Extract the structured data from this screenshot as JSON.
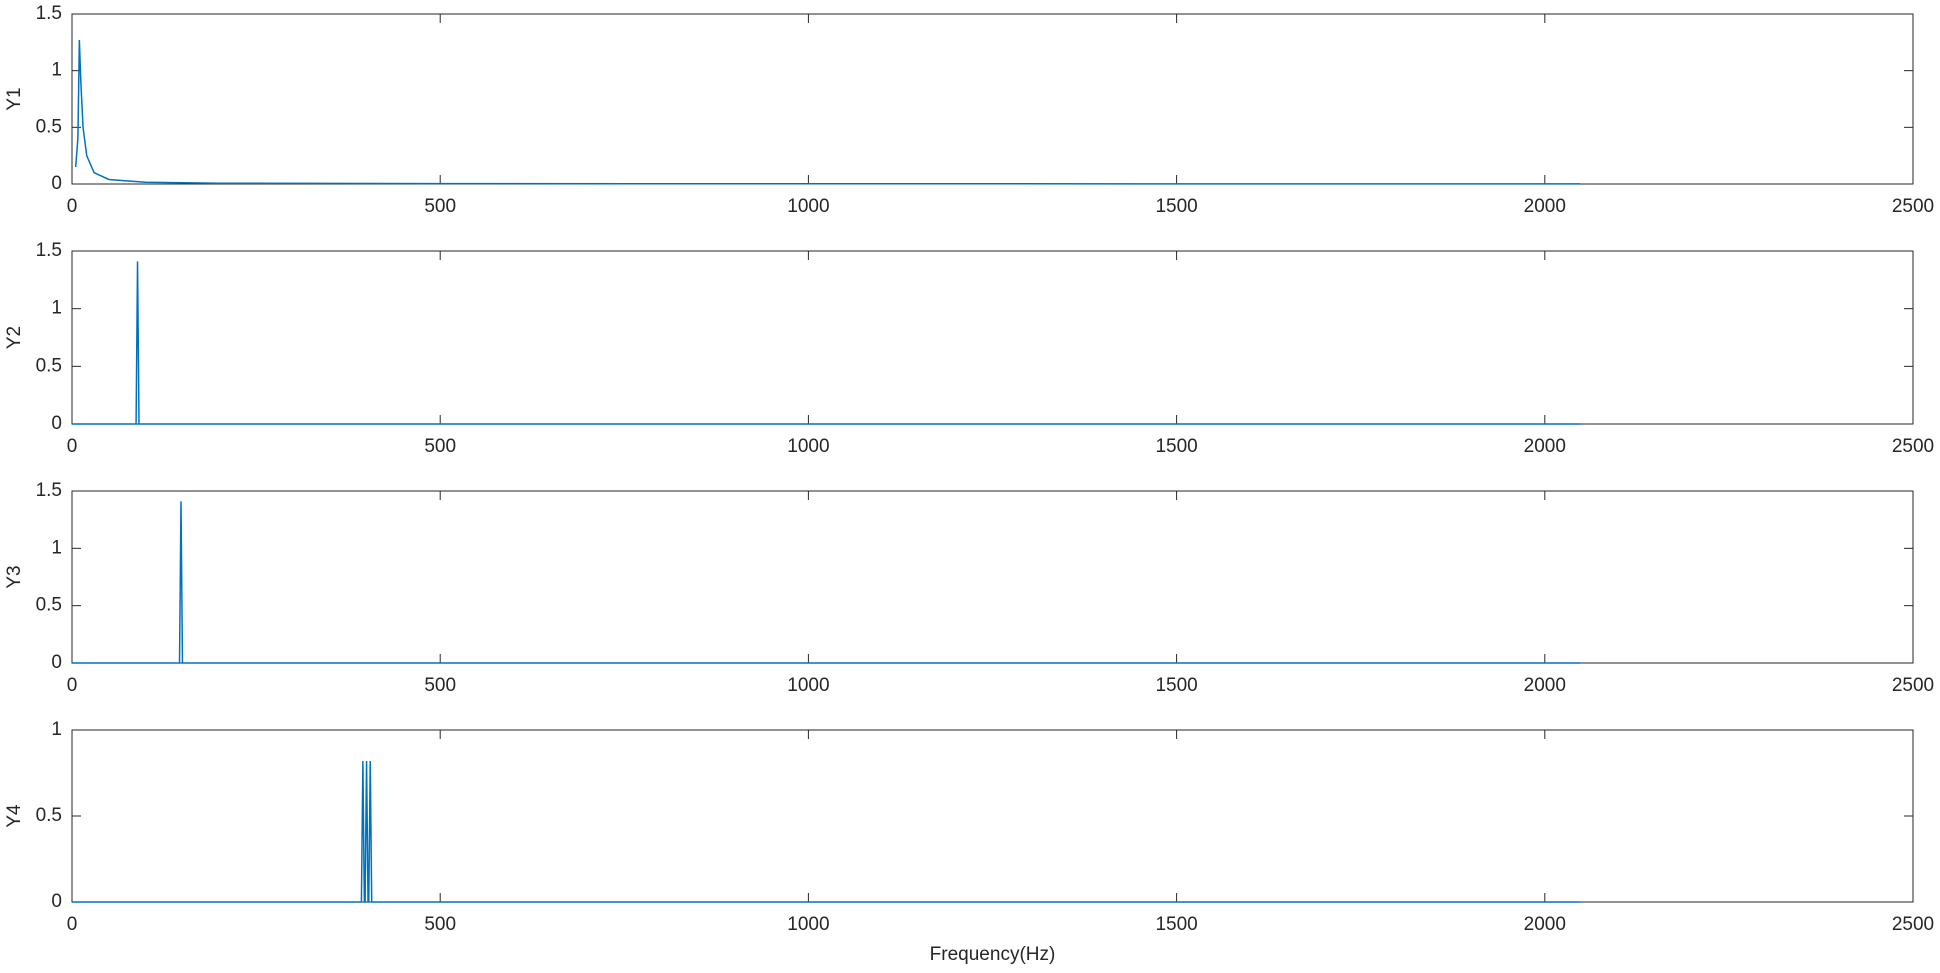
{
  "chart_data": [
    {
      "type": "line",
      "ylabel": "Y1",
      "color": "#0072bd",
      "x": [
        5,
        8,
        10,
        12,
        15,
        20,
        30,
        50,
        100,
        200,
        500,
        1000,
        2048
      ],
      "values": [
        0.15,
        0.4,
        1.27,
        0.9,
        0.5,
        0.25,
        0.1,
        0.04,
        0.015,
        0.007,
        0.003,
        0.002,
        0.001
      ],
      "xlim": [
        0,
        2500
      ],
      "xticks": [
        0,
        500,
        1000,
        1500,
        2000,
        2500
      ],
      "ylim": [
        0,
        1.5
      ],
      "yticks": [
        0,
        0.5,
        1,
        1.5
      ]
    },
    {
      "type": "line",
      "ylabel": "Y2",
      "color": "#0072bd",
      "x": [
        0,
        87,
        89,
        91,
        2048
      ],
      "values": [
        0,
        0,
        1.41,
        0,
        0
      ],
      "xlim": [
        0,
        2500
      ],
      "xticks": [
        0,
        500,
        1000,
        1500,
        2000,
        2500
      ],
      "ylim": [
        0,
        1.5
      ],
      "yticks": [
        0,
        0.5,
        1,
        1.5
      ]
    },
    {
      "type": "line",
      "ylabel": "Y3",
      "color": "#0072bd",
      "x": [
        0,
        146,
        148,
        150,
        2048
      ],
      "values": [
        0,
        0,
        1.41,
        0,
        0
      ],
      "xlim": [
        0,
        2500
      ],
      "xticks": [
        0,
        500,
        1000,
        1500,
        2000,
        2500
      ],
      "ylim": [
        0,
        1.5
      ],
      "yticks": [
        0,
        0.5,
        1,
        1.5
      ]
    },
    {
      "type": "line",
      "ylabel": "Y4",
      "xlabel": "Frequency(Hz)",
      "color": "#0072bd",
      "x": [
        0,
        393,
        395,
        397,
        398,
        400,
        402,
        403,
        405,
        407,
        2048
      ],
      "values": [
        0,
        0,
        0.82,
        0,
        0,
        0.82,
        0,
        0,
        0.82,
        0,
        0
      ],
      "xlim": [
        0,
        2500
      ],
      "xticks": [
        0,
        500,
        1000,
        1500,
        2000,
        2500
      ],
      "ylim": [
        0,
        1
      ],
      "yticks": [
        0,
        0.5,
        1
      ]
    }
  ]
}
